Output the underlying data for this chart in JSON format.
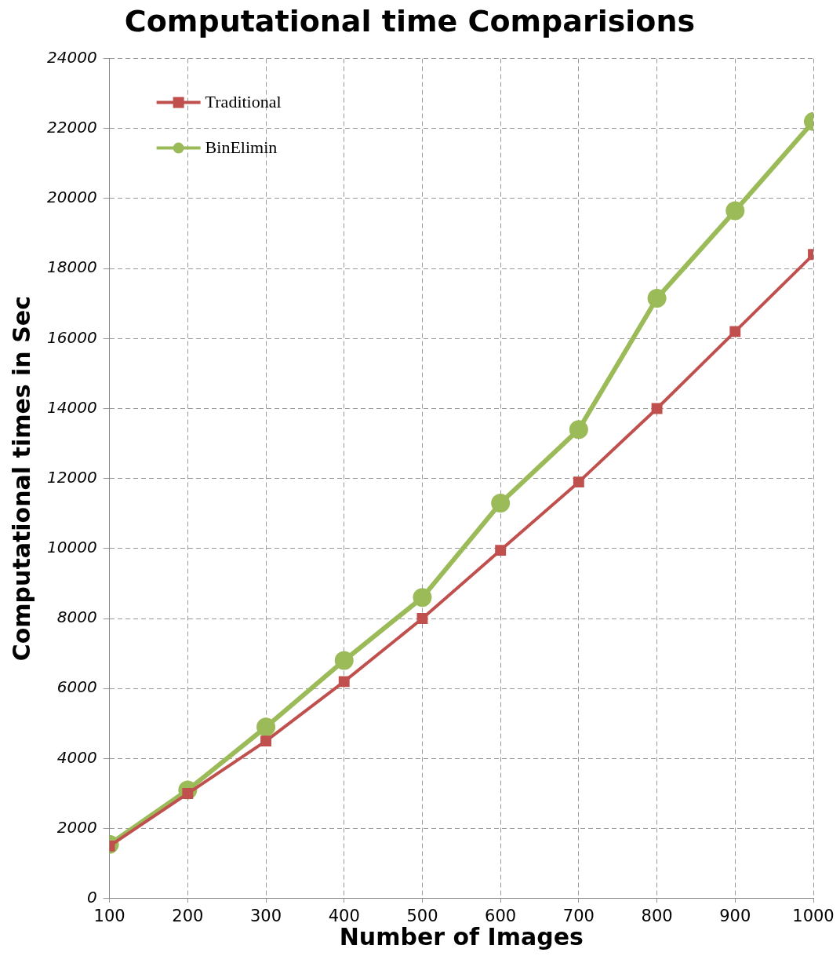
{
  "chart_data": {
    "type": "line",
    "title": "Computational time Comparisions",
    "xlabel": "Number of Images",
    "ylabel": "Computational times in Sec",
    "x": [
      100,
      200,
      300,
      400,
      500,
      600,
      700,
      800,
      900,
      1000
    ],
    "series": [
      {
        "name": "Traditional",
        "color": "#c0504d",
        "marker": "square",
        "values": [
          1500,
          3000,
          4500,
          6200,
          8000,
          9950,
          11900,
          14000,
          16200,
          18400
        ]
      },
      {
        "name": "BinElimin",
        "color": "#9bbb59",
        "marker": "circle",
        "values": [
          1550,
          3100,
          4900,
          6800,
          8600,
          11300,
          13400,
          17150,
          19650,
          22200
        ]
      }
    ],
    "xlim": [
      100,
      1000
    ],
    "xticks": [
      100,
      200,
      300,
      400,
      500,
      600,
      700,
      800,
      900,
      1000
    ],
    "ylim": [
      0,
      24000
    ],
    "yticks": [
      0,
      2000,
      4000,
      6000,
      8000,
      10000,
      12000,
      14000,
      16000,
      18000,
      20000,
      22000,
      24000
    ],
    "grid": true,
    "legend": "top left",
    "line_style": "solid"
  }
}
